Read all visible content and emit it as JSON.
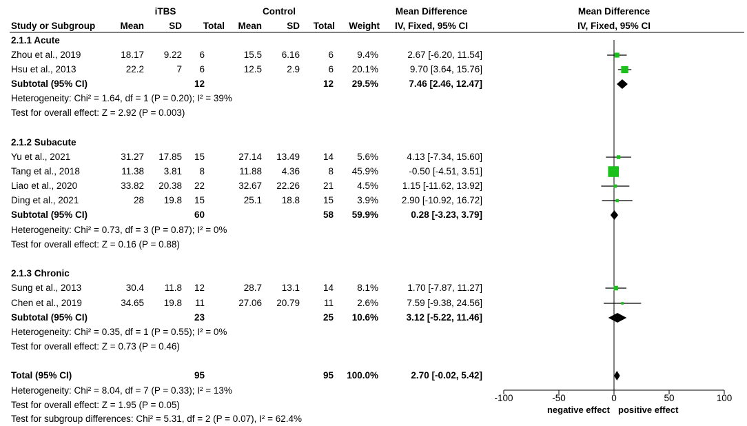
{
  "header": {
    "group1": "iTBS",
    "group2": "Control",
    "md_text": "Mean Difference",
    "md_plot": "Mean Difference",
    "study": "Study or Subgroup",
    "mean1": "Mean",
    "sd1": "SD",
    "total1": "Total",
    "mean2": "Mean",
    "sd2": "SD",
    "total2": "Total",
    "weight": "Weight",
    "method_text": "IV, Fixed, 95% CI",
    "method_plot": "IV, Fixed, 95% CI"
  },
  "subgroups": [
    {
      "title": "2.1.1 Acute",
      "studies": [
        {
          "name": "Zhou et al.,  2019",
          "mean1": "18.17",
          "sd1": "9.22",
          "n1": "6",
          "mean2": "15.5",
          "sd2": "6.16",
          "n2": "6",
          "weight": "9.4%",
          "ci": "2.67 [-6.20, 11.54]",
          "md": 2.67,
          "lo": -6.2,
          "hi": 11.54,
          "w": 9.4
        },
        {
          "name": "Hsu et al., 2013",
          "mean1": "22.2",
          "sd1": "7",
          "n1": "6",
          "mean2": "12.5",
          "sd2": "2.9",
          "n2": "6",
          "weight": "20.1%",
          "ci": "9.70 [3.64, 15.76]",
          "md": 9.7,
          "lo": 3.64,
          "hi": 15.76,
          "w": 20.1
        }
      ],
      "subtotal": {
        "label": "Subtotal (95% CI)",
        "n1": "12",
        "n2": "12",
        "weight": "29.5%",
        "ci": "7.46 [2.46, 12.47]",
        "md": 7.46,
        "lo": 2.46,
        "hi": 12.47
      },
      "heterogeneity": "Heterogeneity: Chi² = 1.64, df = 1 (P = 0.20); I² = 39%",
      "overall": "Test for overall effect: Z = 2.92 (P = 0.003)"
    },
    {
      "title": "2.1.2 Subacute",
      "studies": [
        {
          "name": "Yu et al.,  2021",
          "mean1": "31.27",
          "sd1": "17.85",
          "n1": "15",
          "mean2": "27.14",
          "sd2": "13.49",
          "n2": "14",
          "weight": "5.6%",
          "ci": "4.13 [-7.34, 15.60]",
          "md": 4.13,
          "lo": -7.34,
          "hi": 15.6,
          "w": 5.6
        },
        {
          "name": "Tang et al.,  2018",
          "mean1": "11.38",
          "sd1": "3.81",
          "n1": "8",
          "mean2": "11.88",
          "sd2": "4.36",
          "n2": "8",
          "weight": "45.9%",
          "ci": "-0.50 [-4.51, 3.51]",
          "md": -0.5,
          "lo": -4.51,
          "hi": 3.51,
          "w": 45.9
        },
        {
          "name": "Liao et al., 2020",
          "mean1": "33.82",
          "sd1": "20.38",
          "n1": "22",
          "mean2": "32.67",
          "sd2": "22.26",
          "n2": "21",
          "weight": "4.5%",
          "ci": "1.15 [-11.62, 13.92]",
          "md": 1.15,
          "lo": -11.62,
          "hi": 13.92,
          "w": 4.5
        },
        {
          "name": "Ding et al., 2021",
          "mean1": "28",
          "sd1": "19.8",
          "n1": "15",
          "mean2": "25.1",
          "sd2": "18.8",
          "n2": "15",
          "weight": "3.9%",
          "ci": "2.90 [-10.92, 16.72]",
          "md": 2.9,
          "lo": -10.92,
          "hi": 16.72,
          "w": 3.9
        }
      ],
      "subtotal": {
        "label": "Subtotal (95% CI)",
        "n1": "60",
        "n2": "58",
        "weight": "59.9%",
        "ci": "0.28 [-3.23, 3.79]",
        "md": 0.28,
        "lo": -3.23,
        "hi": 3.79
      },
      "heterogeneity": "Heterogeneity: Chi² = 0.73, df = 3 (P = 0.87); I² = 0%",
      "overall": "Test for overall effect: Z = 0.16 (P = 0.88)"
    },
    {
      "title": "2.1.3 Chronic",
      "studies": [
        {
          "name": "Sung et al., 2013",
          "mean1": "30.4",
          "sd1": "11.8",
          "n1": "12",
          "mean2": "28.7",
          "sd2": "13.1",
          "n2": "14",
          "weight": "8.1%",
          "ci": "1.70 [-7.87, 11.27]",
          "md": 1.7,
          "lo": -7.87,
          "hi": 11.27,
          "w": 8.1
        },
        {
          "name": "Chen et al., 2019",
          "mean1": "34.65",
          "sd1": "19.8",
          "n1": "11",
          "mean2": "27.06",
          "sd2": "20.79",
          "n2": "11",
          "weight": "2.6%",
          "ci": "7.59 [-9.38, 24.56]",
          "md": 7.59,
          "lo": -9.38,
          "hi": 24.56,
          "w": 2.6
        }
      ],
      "subtotal": {
        "label": "Subtotal (95% CI)",
        "n1": "23",
        "n2": "25",
        "weight": "10.6%",
        "ci": "3.12 [-5.22, 11.46]",
        "md": 3.12,
        "lo": -5.22,
        "hi": 11.46
      },
      "heterogeneity": "Heterogeneity: Chi² = 0.35, df = 1 (P = 0.55); I² = 0%",
      "overall": "Test for overall effect: Z = 0.73 (P = 0.46)"
    }
  ],
  "total": {
    "label": "Total (95% CI)",
    "n1": "95",
    "n2": "95",
    "weight": "100.0%",
    "ci": "2.70 [-0.02, 5.42]",
    "md": 2.7,
    "lo": -0.02,
    "hi": 5.42
  },
  "footer": {
    "heterogeneity": "Heterogeneity: Chi² = 8.04, df = 7 (P = 0.33); I² = 13%",
    "overall": "Test for overall effect: Z = 1.95 (P = 0.05)",
    "subgroup_diff": "Test for subgroup differences: Chi² = 5.31, df = 2 (P = 0.07), I² = 62.4%"
  },
  "chart_data": {
    "type": "forest",
    "xlim": [
      -100,
      100
    ],
    "ticks": [
      -100,
      -50,
      0,
      50,
      100
    ],
    "tick_labels": [
      "-100",
      "-50",
      "0",
      "50",
      "100"
    ],
    "xlabel_left": "negative effect",
    "xlabel_right": "positive effect",
    "colors": {
      "study_box": "#1cc01c",
      "diamond": "#000000",
      "line": "#000000"
    }
  }
}
